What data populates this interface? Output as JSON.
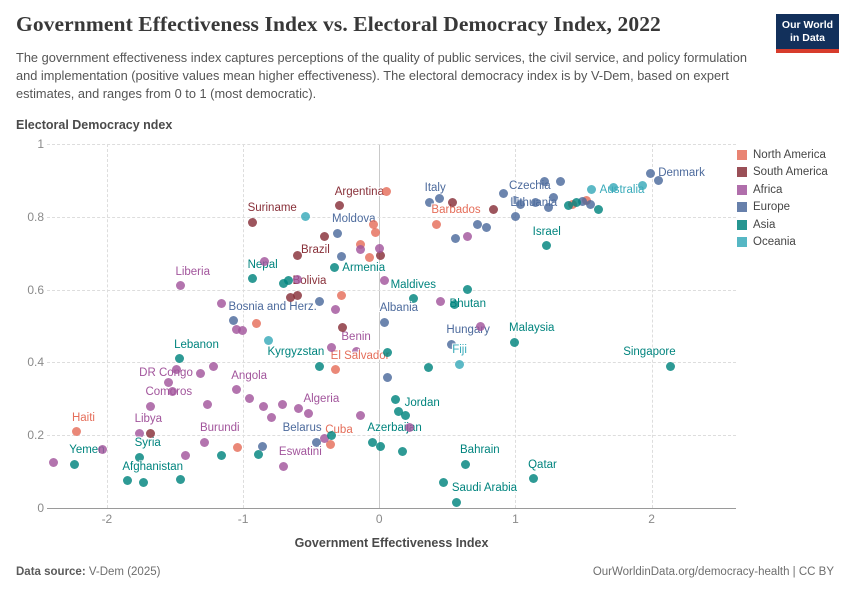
{
  "header": {
    "title": "Government Effectiveness Index vs. Electoral Democracy Index, 2022",
    "subtitle": "The government effectiveness index captures perceptions of the quality of public services, the civil service, and policy formulation and implementation (positive values mean higher effectiveness). The electoral democracy index is by V-Dem, based on expert estimates, and ranges from 0 to 1 (most democratic).",
    "logo_line1": "Our World",
    "logo_line2": "in Data"
  },
  "footer": {
    "source_label": "Data source:",
    "source_value": " V-Dem (2025)",
    "right": "OurWorldinData.org/democracy-health | CC BY"
  },
  "chart_data": {
    "type": "scatter",
    "title": "Government Effectiveness Index vs. Electoral Democracy Index, 2022",
    "xlabel": "Government Effectiveness Index",
    "ylabel": "Electoral Democracy ndex",
    "xlim": [
      -2.44,
      2.62
    ],
    "ylim": [
      0,
      1
    ],
    "xticks": [
      -2,
      -1,
      0,
      1,
      2
    ],
    "yticks": [
      0,
      0.2,
      0.4,
      0.6,
      0.8,
      1
    ],
    "grid": true,
    "legend_position": "right",
    "legend": [
      {
        "name": "North America",
        "color": "#E56E5A"
      },
      {
        "name": "South America",
        "color": "#883039"
      },
      {
        "name": "Africa",
        "color": "#A2559C"
      },
      {
        "name": "Europe",
        "color": "#4C6A9C"
      },
      {
        "name": "Asia",
        "color": "#00847E"
      },
      {
        "name": "Oceania",
        "color": "#38AABA"
      }
    ],
    "points": [
      {
        "label": "Denmark",
        "x": 1.99,
        "y": 0.92,
        "continent": "Europe",
        "anchor": "right"
      },
      {
        "label": "Czechia",
        "x": 0.99,
        "y": 0.845,
        "continent": "Europe",
        "anchor": "above-right"
      },
      {
        "label": "Australia",
        "x": 1.56,
        "y": 0.875,
        "continent": "Oceania",
        "anchor": "right"
      },
      {
        "label": "Lithuania",
        "x": 1.0,
        "y": 0.8,
        "continent": "Europe",
        "anchor": "above-right"
      },
      {
        "label": "Italy",
        "x": 0.37,
        "y": 0.84,
        "continent": "Europe",
        "anchor": "above-right"
      },
      {
        "label": "Barbados",
        "x": 0.42,
        "y": 0.78,
        "continent": "North America",
        "anchor": "above-right"
      },
      {
        "label": "Argentina",
        "x": -0.29,
        "y": 0.83,
        "continent": "South America",
        "anchor": "above-right"
      },
      {
        "label": "Suriname",
        "x": -0.93,
        "y": 0.785,
        "continent": "South America",
        "anchor": "above-right"
      },
      {
        "label": "Moldova",
        "x": -0.31,
        "y": 0.755,
        "continent": "Europe",
        "anchor": "above-right"
      },
      {
        "label": "Israel",
        "x": 1.23,
        "y": 0.72,
        "continent": "Asia",
        "anchor": "above"
      },
      {
        "label": "Brazil",
        "x": -0.4,
        "y": 0.745,
        "continent": "South America",
        "anchor": "below-left"
      },
      {
        "label": "Armenia",
        "x": -0.33,
        "y": 0.66,
        "continent": "Asia",
        "anchor": "right"
      },
      {
        "label": "Nepal",
        "x": -0.93,
        "y": 0.63,
        "continent": "Asia",
        "anchor": "above-right"
      },
      {
        "label": "Liberia",
        "x": -1.46,
        "y": 0.61,
        "continent": "Africa",
        "anchor": "above-right"
      },
      {
        "label": "Bolivia",
        "x": -0.6,
        "y": 0.585,
        "continent": "South America",
        "anchor": "above-right"
      },
      {
        "label": "Maldives",
        "x": 0.25,
        "y": 0.575,
        "continent": "Asia",
        "anchor": "above"
      },
      {
        "label": "Bhutan",
        "x": 0.65,
        "y": 0.6,
        "continent": "Asia",
        "anchor": "below"
      },
      {
        "label": "Bosnia and Herz.",
        "x": -1.07,
        "y": 0.515,
        "continent": "Europe",
        "anchor": "above-right"
      },
      {
        "label": "Albania",
        "x": 0.04,
        "y": 0.51,
        "continent": "Europe",
        "anchor": "above-right"
      },
      {
        "label": "Hungary",
        "x": 0.53,
        "y": 0.45,
        "continent": "Europe",
        "anchor": "above-right"
      },
      {
        "label": "Malaysia",
        "x": 0.99,
        "y": 0.455,
        "continent": "Asia",
        "anchor": "above-right"
      },
      {
        "label": "Fiji",
        "x": 0.59,
        "y": 0.395,
        "continent": "Oceania",
        "anchor": "above"
      },
      {
        "label": "Singapore",
        "x": 2.14,
        "y": 0.39,
        "continent": "Asia",
        "anchor": "above-left"
      },
      {
        "label": "Benin",
        "x": -0.17,
        "y": 0.43,
        "continent": "Africa",
        "anchor": "above"
      },
      {
        "label": "El Salvador",
        "x": -0.32,
        "y": 0.38,
        "continent": "North America",
        "anchor": "above-right"
      },
      {
        "label": "Kyrgyzstan",
        "x": -0.44,
        "y": 0.39,
        "continent": "Asia",
        "anchor": "above-left"
      },
      {
        "label": "Lebanon",
        "x": -1.47,
        "y": 0.41,
        "continent": "Asia",
        "anchor": "above-right"
      },
      {
        "label": "DR Congo",
        "x": -1.31,
        "y": 0.37,
        "continent": "Africa",
        "anchor": "left"
      },
      {
        "label": "Angola",
        "x": -1.05,
        "y": 0.325,
        "continent": "Africa",
        "anchor": "above-right"
      },
      {
        "label": "Comoros",
        "x": -1.68,
        "y": 0.28,
        "continent": "Africa",
        "anchor": "above-right"
      },
      {
        "label": "Haiti",
        "x": -2.22,
        "y": 0.21,
        "continent": "North America",
        "anchor": "above-right"
      },
      {
        "label": "Libya",
        "x": -1.76,
        "y": 0.205,
        "continent": "Africa",
        "anchor": "above-right"
      },
      {
        "label": "Burundi",
        "x": -1.28,
        "y": 0.18,
        "continent": "Africa",
        "anchor": "above-right"
      },
      {
        "label": "Belarus",
        "x": -0.46,
        "y": 0.18,
        "continent": "Europe",
        "anchor": "above-left"
      },
      {
        "label": "Cuba",
        "x": -0.36,
        "y": 0.175,
        "continent": "North America",
        "anchor": "above-right"
      },
      {
        "label": "Azerbaijan",
        "x": -0.05,
        "y": 0.18,
        "continent": "Asia",
        "anchor": "above-right"
      },
      {
        "label": "Eswatini",
        "x": -0.7,
        "y": 0.115,
        "continent": "Africa",
        "anchor": "above-right"
      },
      {
        "label": "Yemen",
        "x": -2.24,
        "y": 0.12,
        "continent": "Asia",
        "anchor": "above-right"
      },
      {
        "label": "Syria",
        "x": -1.76,
        "y": 0.14,
        "continent": "Asia",
        "anchor": "above-right"
      },
      {
        "label": "Afghanistan",
        "x": -1.85,
        "y": 0.075,
        "continent": "Asia",
        "anchor": "above-right"
      },
      {
        "label": "Jordan",
        "x": 0.12,
        "y": 0.297,
        "continent": "Asia",
        "anchor": "right-below"
      },
      {
        "label": "Algeria",
        "x": -0.52,
        "y": 0.26,
        "continent": "Africa",
        "anchor": "above-right"
      },
      {
        "label": "Bahrain",
        "x": 0.63,
        "y": 0.12,
        "continent": "Asia",
        "anchor": "above-right"
      },
      {
        "label": "Qatar",
        "x": 1.13,
        "y": 0.08,
        "continent": "Asia",
        "anchor": "above-right"
      },
      {
        "label": "Saudi Arabia",
        "x": 0.57,
        "y": 0.016,
        "continent": "Asia",
        "anchor": "above-right"
      },
      {
        "label": "",
        "x": 0.05,
        "y": 0.87,
        "continent": "North America"
      },
      {
        "label": "",
        "x": -0.04,
        "y": 0.78,
        "continent": "North America"
      },
      {
        "label": "",
        "x": -0.03,
        "y": 0.758,
        "continent": "North America"
      },
      {
        "label": "",
        "x": -0.14,
        "y": 0.725,
        "continent": "North America"
      },
      {
        "label": "",
        "x": -0.07,
        "y": 0.688,
        "continent": "North America"
      },
      {
        "label": "",
        "x": -0.28,
        "y": 0.585,
        "continent": "North America"
      },
      {
        "label": "",
        "x": -0.9,
        "y": 0.508,
        "continent": "North America"
      },
      {
        "label": "",
        "x": -1.04,
        "y": 0.165,
        "continent": "North America"
      },
      {
        "label": "",
        "x": 1.52,
        "y": 0.846,
        "continent": "North America"
      },
      {
        "label": "",
        "x": 1.42,
        "y": 0.834,
        "continent": "North America"
      },
      {
        "label": "",
        "x": 0.54,
        "y": 0.84,
        "continent": "South America"
      },
      {
        "label": "",
        "x": 0.84,
        "y": 0.82,
        "continent": "South America"
      },
      {
        "label": "",
        "x": -0.6,
        "y": 0.695,
        "continent": "South America"
      },
      {
        "label": "",
        "x": -0.27,
        "y": 0.495,
        "continent": "South America"
      },
      {
        "label": "",
        "x": 0.01,
        "y": 0.695,
        "continent": "South America"
      },
      {
        "label": "",
        "x": -1.68,
        "y": 0.206,
        "continent": "South America"
      },
      {
        "label": "",
        "x": -0.655,
        "y": 0.578,
        "continent": "South America"
      },
      {
        "label": "",
        "x": -0.84,
        "y": 0.676,
        "continent": "Africa"
      },
      {
        "label": "",
        "x": -0.6,
        "y": 0.627,
        "continent": "Africa"
      },
      {
        "label": "",
        "x": 0.04,
        "y": 0.625,
        "continent": "Africa"
      },
      {
        "label": "",
        "x": -1.16,
        "y": 0.563,
        "continent": "Africa"
      },
      {
        "label": "",
        "x": 0.45,
        "y": 0.568,
        "continent": "Africa"
      },
      {
        "label": "",
        "x": 0.65,
        "y": 0.745,
        "continent": "Africa"
      },
      {
        "label": "",
        "x": -1.05,
        "y": 0.49,
        "continent": "Africa"
      },
      {
        "label": "",
        "x": -1.005,
        "y": 0.488,
        "continent": "Africa"
      },
      {
        "label": "",
        "x": -0.32,
        "y": 0.544,
        "continent": "Africa"
      },
      {
        "label": "",
        "x": -0.35,
        "y": 0.442,
        "continent": "Africa"
      },
      {
        "label": "",
        "x": 0.74,
        "y": 0.5,
        "continent": "Africa"
      },
      {
        "label": "",
        "x": -0.14,
        "y": 0.71,
        "continent": "Africa"
      },
      {
        "label": "",
        "x": 0.0,
        "y": 0.712,
        "continent": "Africa"
      },
      {
        "label": "",
        "x": -2.03,
        "y": 0.162,
        "continent": "Africa"
      },
      {
        "label": "",
        "x": -2.39,
        "y": 0.124,
        "continent": "Africa"
      },
      {
        "label": "",
        "x": -1.42,
        "y": 0.143,
        "continent": "Africa"
      },
      {
        "label": "",
        "x": -0.59,
        "y": 0.272,
        "continent": "Africa"
      },
      {
        "label": "",
        "x": -0.14,
        "y": 0.253,
        "continent": "Africa"
      },
      {
        "label": "",
        "x": 0.22,
        "y": 0.22,
        "continent": "Africa"
      },
      {
        "label": "",
        "x": -1.26,
        "y": 0.283,
        "continent": "Africa"
      },
      {
        "label": "",
        "x": -1.55,
        "y": 0.345,
        "continent": "Africa"
      },
      {
        "label": "",
        "x": -1.52,
        "y": 0.32,
        "continent": "Africa"
      },
      {
        "label": "",
        "x": -0.95,
        "y": 0.302,
        "continent": "Africa"
      },
      {
        "label": "",
        "x": -0.85,
        "y": 0.278,
        "continent": "Africa"
      },
      {
        "label": "",
        "x": -0.79,
        "y": 0.25,
        "continent": "Africa"
      },
      {
        "label": "",
        "x": -0.71,
        "y": 0.283,
        "continent": "Africa"
      },
      {
        "label": "",
        "x": -1.49,
        "y": 0.38,
        "continent": "Africa"
      },
      {
        "label": "",
        "x": -0.4,
        "y": 0.19,
        "continent": "Africa"
      },
      {
        "label": "",
        "x": -1.22,
        "y": 0.39,
        "continent": "Africa"
      },
      {
        "label": "",
        "x": 0.44,
        "y": 0.85,
        "continent": "Europe"
      },
      {
        "label": "",
        "x": 0.72,
        "y": 0.78,
        "continent": "Europe"
      },
      {
        "label": "",
        "x": 0.79,
        "y": 0.77,
        "continent": "Europe"
      },
      {
        "label": "",
        "x": 1.15,
        "y": 0.838,
        "continent": "Europe"
      },
      {
        "label": "",
        "x": 1.21,
        "y": 0.897,
        "continent": "Europe"
      },
      {
        "label": "",
        "x": 1.24,
        "y": 0.826,
        "continent": "Europe"
      },
      {
        "label": "",
        "x": 1.28,
        "y": 0.852,
        "continent": "Europe"
      },
      {
        "label": "",
        "x": 1.33,
        "y": 0.896,
        "continent": "Europe"
      },
      {
        "label": "",
        "x": 1.49,
        "y": 0.843,
        "continent": "Europe"
      },
      {
        "label": "",
        "x": 1.55,
        "y": 0.833,
        "continent": "Europe"
      },
      {
        "label": "",
        "x": 2.05,
        "y": 0.9,
        "continent": "Europe"
      },
      {
        "label": "",
        "x": 0.91,
        "y": 0.865,
        "continent": "Europe"
      },
      {
        "label": "",
        "x": 1.04,
        "y": 0.835,
        "continent": "Europe"
      },
      {
        "label": "",
        "x": 0.56,
        "y": 0.74,
        "continent": "Europe"
      },
      {
        "label": "",
        "x": -0.28,
        "y": 0.69,
        "continent": "Europe"
      },
      {
        "label": "",
        "x": -0.44,
        "y": 0.566,
        "continent": "Europe"
      },
      {
        "label": "",
        "x": 0.06,
        "y": 0.358,
        "continent": "Europe"
      },
      {
        "label": "",
        "x": -0.86,
        "y": 0.17,
        "continent": "Europe"
      },
      {
        "label": "",
        "x": 1.39,
        "y": 0.83,
        "continent": "Asia"
      },
      {
        "label": "",
        "x": 1.61,
        "y": 0.82,
        "continent": "Asia"
      },
      {
        "label": "",
        "x": 1.45,
        "y": 0.84,
        "continent": "Asia"
      },
      {
        "label": "",
        "x": 0.36,
        "y": 0.385,
        "continent": "Asia"
      },
      {
        "label": "",
        "x": 0.47,
        "y": 0.07,
        "continent": "Asia"
      },
      {
        "label": "",
        "x": 0.17,
        "y": 0.154,
        "continent": "Asia"
      },
      {
        "label": "",
        "x": -0.35,
        "y": 0.2,
        "continent": "Asia"
      },
      {
        "label": "",
        "x": -1.16,
        "y": 0.143,
        "continent": "Asia"
      },
      {
        "label": "",
        "x": -0.89,
        "y": 0.148,
        "continent": "Asia"
      },
      {
        "label": "",
        "x": -1.73,
        "y": 0.069,
        "continent": "Asia"
      },
      {
        "label": "",
        "x": -1.46,
        "y": 0.077,
        "continent": "Asia"
      },
      {
        "label": "",
        "x": 0.14,
        "y": 0.264,
        "continent": "Asia"
      },
      {
        "label": "",
        "x": 0.19,
        "y": 0.253,
        "continent": "Asia"
      },
      {
        "label": "",
        "x": -0.67,
        "y": 0.626,
        "continent": "Asia"
      },
      {
        "label": "",
        "x": 0.55,
        "y": 0.56,
        "continent": "Asia"
      },
      {
        "label": "",
        "x": 0.06,
        "y": 0.426,
        "continent": "Asia"
      },
      {
        "label": "",
        "x": -0.7,
        "y": 0.618,
        "continent": "Asia"
      },
      {
        "label": "",
        "x": 0.01,
        "y": 0.168,
        "continent": "Asia"
      },
      {
        "label": "",
        "x": -0.54,
        "y": 0.8,
        "continent": "Oceania"
      },
      {
        "label": "",
        "x": -0.81,
        "y": 0.46,
        "continent": "Oceania"
      },
      {
        "label": "",
        "x": 1.72,
        "y": 0.88,
        "continent": "Oceania"
      },
      {
        "label": "",
        "x": 1.93,
        "y": 0.885,
        "continent": "Oceania"
      }
    ]
  }
}
